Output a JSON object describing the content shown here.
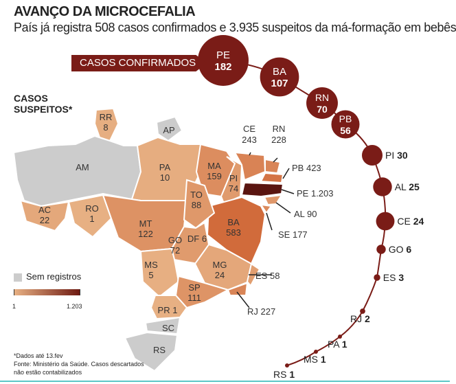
{
  "header": {
    "title": "AVANÇO DA MICROCEFALIA",
    "subtitle": "País já registra 508 casos confirmados e 3.935 suspeitos da má-formação em bebês"
  },
  "confirmed": {
    "label": "CASOS CONFIRMADOS",
    "color": "#7a1c17",
    "items": [
      {
        "state": "PE",
        "value": "182"
      },
      {
        "state": "BA",
        "value": "107"
      },
      {
        "state": "RN",
        "value": "70"
      },
      {
        "state": "PB",
        "value": "56"
      },
      {
        "state": "PI",
        "value": "30"
      },
      {
        "state": "AL",
        "value": "25"
      },
      {
        "state": "CE",
        "value": "24"
      },
      {
        "state": "GO",
        "value": "6"
      },
      {
        "state": "ES",
        "value": "3"
      },
      {
        "state": "RJ",
        "value": "2"
      },
      {
        "state": "PA",
        "value": "1"
      },
      {
        "state": "MS",
        "value": "1"
      },
      {
        "state": "RS",
        "value": "1"
      }
    ]
  },
  "suspected": {
    "label": "CASOS SUSPEITOS*",
    "states": [
      {
        "state": "RR",
        "value": "8"
      },
      {
        "state": "AP",
        "value": ""
      },
      {
        "state": "AM",
        "value": ""
      },
      {
        "state": "AC",
        "value": "22"
      },
      {
        "state": "RO",
        "value": "1"
      },
      {
        "state": "PA",
        "value": "10"
      },
      {
        "state": "MT",
        "value": "122"
      },
      {
        "state": "MA",
        "value": "159"
      },
      {
        "state": "PI",
        "value": "74"
      },
      {
        "state": "CE",
        "value": "243"
      },
      {
        "state": "RN",
        "value": "228"
      },
      {
        "state": "PB",
        "value": "423"
      },
      {
        "state": "PE",
        "value": "1.203"
      },
      {
        "state": "AL",
        "value": "90"
      },
      {
        "state": "SE",
        "value": "177"
      },
      {
        "state": "BA",
        "value": "583"
      },
      {
        "state": "TO",
        "value": "88"
      },
      {
        "state": "DF",
        "value": "6"
      },
      {
        "state": "GO",
        "value": "72"
      },
      {
        "state": "MG",
        "value": "24"
      },
      {
        "state": "ES",
        "value": "58"
      },
      {
        "state": "RJ",
        "value": "227"
      },
      {
        "state": "MS",
        "value": "5"
      },
      {
        "state": "SP",
        "value": "111"
      },
      {
        "state": "PR",
        "value": "1"
      },
      {
        "state": "SC",
        "value": ""
      },
      {
        "state": "RS",
        "value": ""
      }
    ]
  },
  "legend": {
    "no_records": "Sem registros",
    "min": "1",
    "max": "1.203",
    "no_color": "#cccccc",
    "low_color": "#e7b083",
    "high_color": "#6e1a12"
  },
  "footer": {
    "note": "*Dados até 13.fev",
    "source": "Fonte: Ministério da Saúde. Casos descartados não estão contabilizados"
  }
}
